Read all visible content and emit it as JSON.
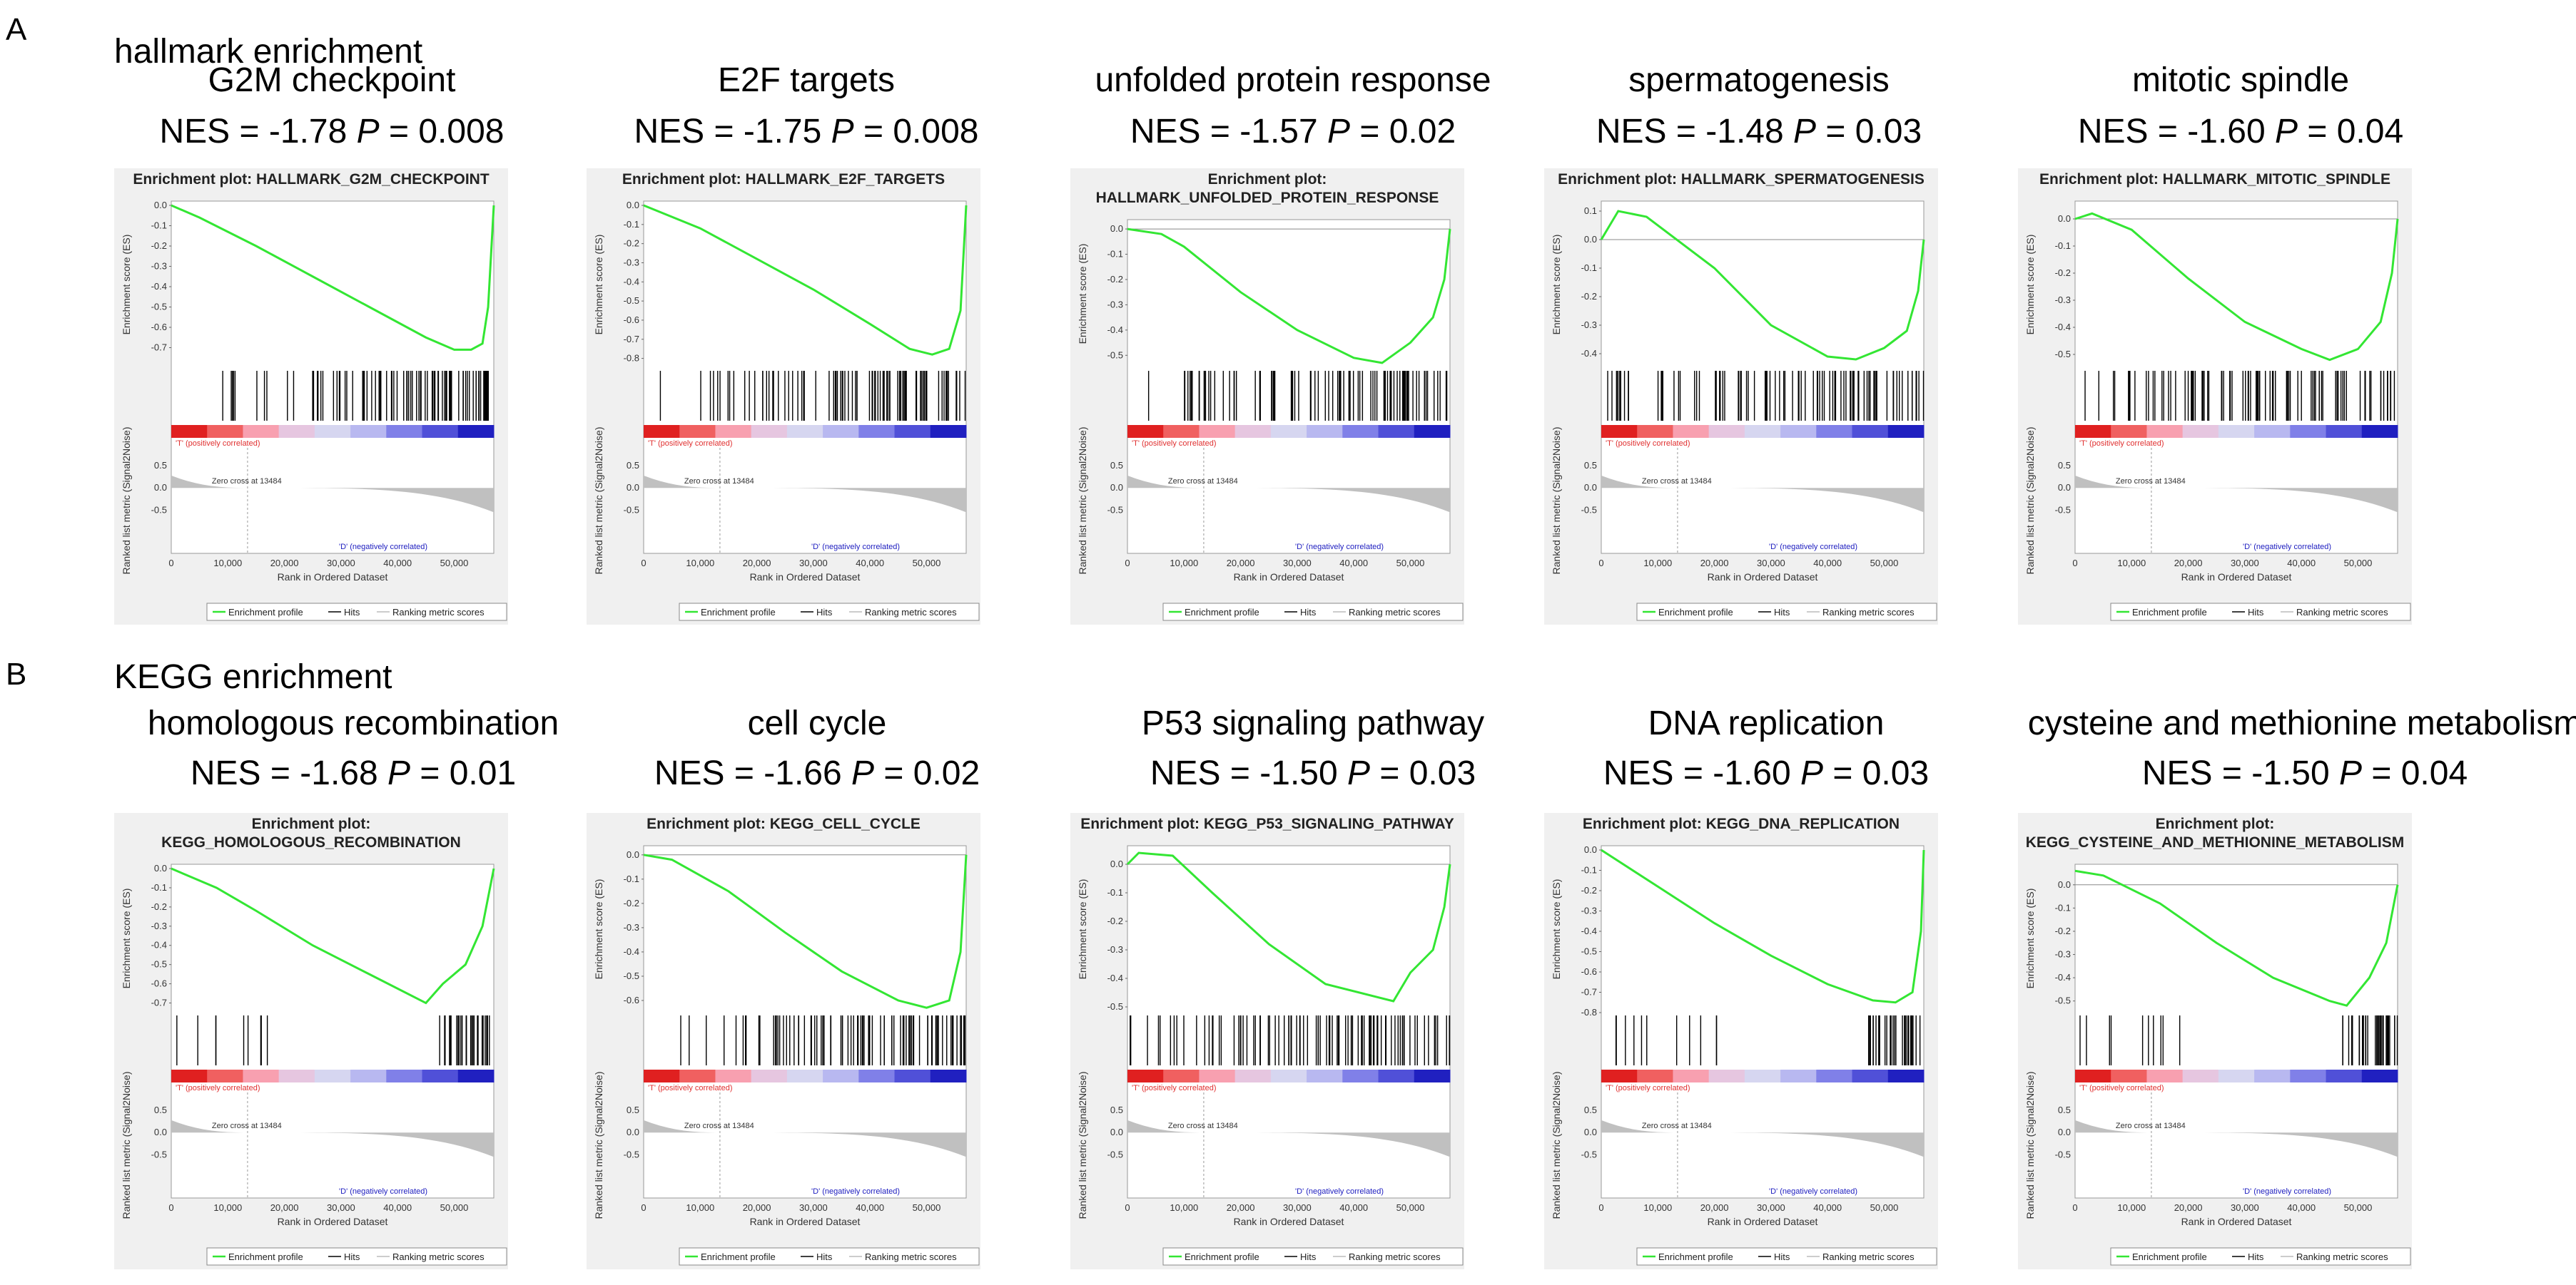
{
  "sections": [
    {
      "label": "A",
      "title": "hallmark enrichment"
    },
    {
      "label": "B",
      "title": "KEGG enrichment"
    }
  ],
  "common": {
    "es_ylabel": "Enrichment score (ES)",
    "metric_ylabel": "Ranked list metric (Signal2Noise)",
    "xlabel": "Rank in Ordered Dataset",
    "x_ticks": [
      "0",
      "10,000",
      "20,000",
      "30,000",
      "40,000",
      "50,000"
    ],
    "pos_label": "'T' (positively correlated)",
    "neg_label": "'D' (negatively correlated)",
    "zero_cross": "Zero cross at 13484",
    "legend": [
      "Enrichment profile",
      "Hits",
      "Ranking metric scores"
    ],
    "metric_ticks": [
      "0.5",
      "0.0",
      "-0.5"
    ]
  },
  "colors": {
    "es_line": "#33e633",
    "panel_bg": "#f0f0f0",
    "metric_fill": "#c0c0c0",
    "pos": "#e03030",
    "neg": "#2020c0"
  },
  "chart_data": [
    {
      "type": "line",
      "section": 0,
      "name": "G2M checkpoint",
      "nes": "NES = -1.78",
      "p": "0.008",
      "plot_title": [
        "Enrichment plot: HALLMARK_G2M_CHECKPOINT"
      ],
      "ylim": [
        -0.8,
        0.0
      ],
      "yticks": [
        "0.0",
        "-0.1",
        "-0.2",
        "-0.3",
        "-0.4",
        "-0.5",
        "-0.6",
        "-0.7"
      ],
      "xlim": [
        0,
        57000
      ],
      "profile": [
        [
          0,
          0
        ],
        [
          5000,
          -0.06
        ],
        [
          15000,
          -0.2
        ],
        [
          25000,
          -0.35
        ],
        [
          35000,
          -0.5
        ],
        [
          45000,
          -0.65
        ],
        [
          50000,
          -0.71
        ],
        [
          53000,
          -0.71
        ],
        [
          55000,
          -0.68
        ],
        [
          56000,
          -0.5
        ],
        [
          57000,
          0
        ]
      ],
      "hits": "late"
    },
    {
      "type": "line",
      "section": 0,
      "name": "E2F targets",
      "nes": "NES = -1.75",
      "p": "0.008",
      "plot_title": [
        "Enrichment plot: HALLMARK_E2F_TARGETS"
      ],
      "ylim": [
        -0.85,
        0.0
      ],
      "yticks": [
        "0.0",
        "-0.1",
        "-0.2",
        "-0.3",
        "-0.4",
        "-0.5",
        "-0.6",
        "-0.7",
        "-0.8"
      ],
      "xlim": [
        0,
        57000
      ],
      "profile": [
        [
          0,
          0
        ],
        [
          10000,
          -0.12
        ],
        [
          20000,
          -0.28
        ],
        [
          30000,
          -0.44
        ],
        [
          40000,
          -0.62
        ],
        [
          47000,
          -0.75
        ],
        [
          51000,
          -0.78
        ],
        [
          54000,
          -0.75
        ],
        [
          56000,
          -0.55
        ],
        [
          57000,
          0
        ]
      ],
      "hits": "late"
    },
    {
      "type": "line",
      "section": 0,
      "name": "unfolded protein response",
      "nes": "NES = -1.57",
      "p": "0.02",
      "plot_title": [
        "Enrichment plot:",
        "HALLMARK_UNFOLDED_PROTEIN_RESPONSE"
      ],
      "ylim": [
        -0.55,
        0.02
      ],
      "yticks": [
        "0.0",
        "-0.1",
        "-0.2",
        "-0.3",
        "-0.4",
        "-0.5"
      ],
      "xlim": [
        0,
        57000
      ],
      "profile": [
        [
          0,
          0
        ],
        [
          6000,
          -0.02
        ],
        [
          10000,
          -0.07
        ],
        [
          20000,
          -0.25
        ],
        [
          30000,
          -0.4
        ],
        [
          40000,
          -0.51
        ],
        [
          45000,
          -0.53
        ],
        [
          50000,
          -0.45
        ],
        [
          54000,
          -0.35
        ],
        [
          56000,
          -0.2
        ],
        [
          57000,
          0
        ]
      ],
      "hits": "spread"
    },
    {
      "type": "line",
      "section": 0,
      "name": "spermatogenesis",
      "nes": "NES = -1.48",
      "p": "0.03",
      "plot_title": [
        "Enrichment plot: HALLMARK_SPERMATOGENESIS"
      ],
      "ylim": [
        -0.45,
        0.12
      ],
      "yticks": [
        "0.1",
        "0.0",
        "-0.1",
        "-0.2",
        "-0.3",
        "-0.4"
      ],
      "xlim": [
        0,
        57000
      ],
      "profile": [
        [
          0,
          0
        ],
        [
          3000,
          0.1
        ],
        [
          8000,
          0.08
        ],
        [
          20000,
          -0.1
        ],
        [
          30000,
          -0.3
        ],
        [
          40000,
          -0.41
        ],
        [
          45000,
          -0.42
        ],
        [
          50000,
          -0.38
        ],
        [
          54000,
          -0.32
        ],
        [
          56000,
          -0.18
        ],
        [
          57000,
          0
        ]
      ],
      "hits": "spread"
    },
    {
      "type": "line",
      "section": 0,
      "name": "mitotic spindle",
      "nes": "NES = -1.60",
      "p": "0.04",
      "plot_title": [
        "Enrichment plot: HALLMARK_MITOTIC_SPINDLE"
      ],
      "ylim": [
        -0.55,
        0.05
      ],
      "yticks": [
        "0.0",
        "-0.1",
        "-0.2",
        "-0.3",
        "-0.4",
        "-0.5"
      ],
      "xlim": [
        0,
        57000
      ],
      "profile": [
        [
          0,
          0
        ],
        [
          3000,
          0.02
        ],
        [
          10000,
          -0.04
        ],
        [
          20000,
          -0.22
        ],
        [
          30000,
          -0.38
        ],
        [
          40000,
          -0.48
        ],
        [
          45000,
          -0.52
        ],
        [
          50000,
          -0.48
        ],
        [
          54000,
          -0.38
        ],
        [
          56000,
          -0.2
        ],
        [
          57000,
          0
        ]
      ],
      "hits": "spread"
    },
    {
      "type": "line",
      "section": 1,
      "name": "homologous recombination",
      "nes": "NES = -1.68",
      "p": "0.01",
      "plot_title": [
        "Enrichment plot:",
        "KEGG_HOMOLOGOUS_RECOMBINATION"
      ],
      "ylim": [
        -0.75,
        0.0
      ],
      "yticks": [
        "0.0",
        "-0.1",
        "-0.2",
        "-0.3",
        "-0.4",
        "-0.5",
        "-0.6",
        "-0.7"
      ],
      "xlim": [
        0,
        57000
      ],
      "profile": [
        [
          0,
          0
        ],
        [
          8000,
          -0.1
        ],
        [
          15000,
          -0.22
        ],
        [
          25000,
          -0.4
        ],
        [
          35000,
          -0.55
        ],
        [
          45000,
          -0.7
        ],
        [
          48000,
          -0.6
        ],
        [
          52000,
          -0.5
        ],
        [
          55000,
          -0.3
        ],
        [
          57000,
          0
        ]
      ],
      "hits": "sparse"
    },
    {
      "type": "line",
      "section": 1,
      "name": "cell cycle",
      "nes": "NES = -1.66",
      "p": "0.02",
      "plot_title": [
        "Enrichment plot: KEGG_CELL_CYCLE"
      ],
      "ylim": [
        -0.65,
        0.02
      ],
      "yticks": [
        "0.0",
        "-0.1",
        "-0.2",
        "-0.3",
        "-0.4",
        "-0.5",
        "-0.6"
      ],
      "xlim": [
        0,
        57000
      ],
      "profile": [
        [
          0,
          0
        ],
        [
          5000,
          -0.02
        ],
        [
          15000,
          -0.15
        ],
        [
          25000,
          -0.32
        ],
        [
          35000,
          -0.48
        ],
        [
          45000,
          -0.6
        ],
        [
          50000,
          -0.63
        ],
        [
          54000,
          -0.6
        ],
        [
          56000,
          -0.4
        ],
        [
          57000,
          0
        ]
      ],
      "hits": "late"
    },
    {
      "type": "line",
      "section": 1,
      "name": "P53 signaling pathway",
      "nes": "NES = -1.50",
      "p": "0.03",
      "plot_title": [
        "Enrichment plot: KEGG_P53_SIGNALING_PATHWAY"
      ],
      "ylim": [
        -0.52,
        0.05
      ],
      "yticks": [
        "0.0",
        "-0.1",
        "-0.2",
        "-0.3",
        "-0.4",
        "-0.5"
      ],
      "xlim": [
        0,
        57000
      ],
      "profile": [
        [
          0,
          0
        ],
        [
          2000,
          0.04
        ],
        [
          8000,
          0.03
        ],
        [
          15000,
          -0.1
        ],
        [
          25000,
          -0.28
        ],
        [
          35000,
          -0.42
        ],
        [
          47000,
          -0.48
        ],
        [
          50000,
          -0.38
        ],
        [
          54000,
          -0.3
        ],
        [
          56000,
          -0.15
        ],
        [
          57000,
          0
        ]
      ],
      "hits": "spread"
    },
    {
      "type": "line",
      "section": 1,
      "name": "DNA replication",
      "nes": "NES = -1.60",
      "p": "0.03",
      "plot_title": [
        "Enrichment plot: KEGG_DNA_REPLICATION"
      ],
      "ylim": [
        -0.8,
        0.0
      ],
      "yticks": [
        "0.0",
        "-0.1",
        "-0.2",
        "-0.3",
        "-0.4",
        "-0.5",
        "-0.6",
        "-0.7",
        "-0.8"
      ],
      "xlim": [
        0,
        57000
      ],
      "profile": [
        [
          0,
          0
        ],
        [
          10000,
          -0.18
        ],
        [
          20000,
          -0.36
        ],
        [
          30000,
          -0.52
        ],
        [
          40000,
          -0.66
        ],
        [
          48000,
          -0.74
        ],
        [
          52000,
          -0.75
        ],
        [
          55000,
          -0.7
        ],
        [
          56500,
          -0.4
        ],
        [
          57000,
          0
        ]
      ],
      "hits": "sparse"
    },
    {
      "type": "line",
      "section": 1,
      "name": "cysteine and methionine metabolism",
      "nes": "NES = -1.50",
      "p": "0.04",
      "plot_title": [
        "Enrichment plot:",
        "KEGG_CYSTEINE_AND_METHIONINE_METABOLISM"
      ],
      "ylim": [
        -0.55,
        0.07
      ],
      "yticks": [
        "0.0",
        "-0.1",
        "-0.2",
        "-0.3",
        "-0.4",
        "-0.5"
      ],
      "xlim": [
        0,
        57000
      ],
      "profile": [
        [
          0,
          0.06
        ],
        [
          5000,
          0.04
        ],
        [
          15000,
          -0.08
        ],
        [
          25000,
          -0.25
        ],
        [
          35000,
          -0.4
        ],
        [
          45000,
          -0.5
        ],
        [
          48000,
          -0.52
        ],
        [
          52000,
          -0.4
        ],
        [
          55000,
          -0.25
        ],
        [
          57000,
          0
        ]
      ],
      "hits": "sparse"
    }
  ]
}
